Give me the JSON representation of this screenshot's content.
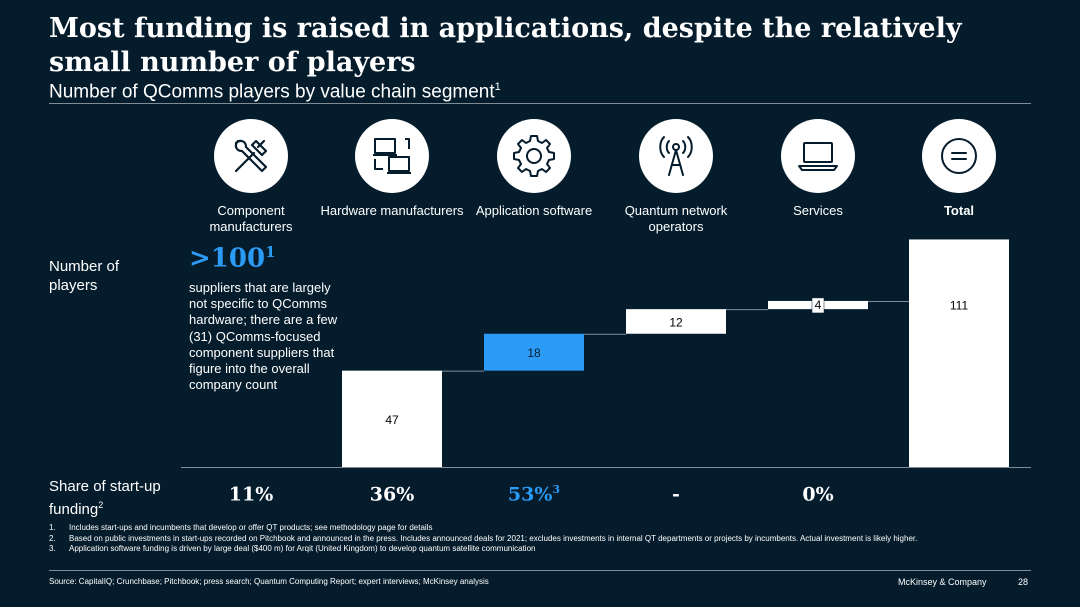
{
  "title": "Most funding is raised in applications, despite the relatively small number of players",
  "subtitle": "Number of QComms players by value chain segment",
  "subtitle_sup": "1",
  "row_labels": {
    "players": "Number of players",
    "funding": "Share of start-up funding",
    "funding_sup": "2"
  },
  "highlight": {
    "value": ">100",
    "sup": "1",
    "note": "suppliers that are largely not specific to QComms hardware; there are a few (31) QComms-focused component suppliers that figure into the overall company count"
  },
  "segments": [
    {
      "label": "Component manufacturers",
      "icon": "tools-icon",
      "share": "11%",
      "share_sup": "",
      "bold": false
    },
    {
      "label": "Hardware manufacturers",
      "icon": "hardware-devices-icon",
      "share": "36%",
      "share_sup": "",
      "bold": false
    },
    {
      "label": "Application software",
      "icon": "gear-icon",
      "share": "53%",
      "share_sup": "3",
      "bold": false
    },
    {
      "label": "Quantum network operators",
      "icon": "antenna-tower-icon",
      "share": "-",
      "share_sup": "",
      "bold": false
    },
    {
      "label": "Services",
      "icon": "laptop-icon",
      "share": "0%",
      "share_sup": "",
      "bold": false
    },
    {
      "label": "Total",
      "icon": "equals-icon",
      "share": "",
      "share_sup": "",
      "bold": true
    }
  ],
  "chart_data": {
    "type": "bar",
    "categories": [
      "Component manufacturers",
      "Hardware manufacturers",
      "Application software",
      "Quantum network operators",
      "Services",
      "Total"
    ],
    "values": [
      null,
      47,
      18,
      12,
      4,
      111
    ],
    "labels": [
      "",
      "47",
      "18",
      "12",
      "4",
      "111"
    ],
    "colors": {
      "default": "#ffffff",
      "highlight": "#2b9bf6",
      "connector": "#7f8c96"
    },
    "highlight_index": 2
  },
  "footnotes": [
    {
      "n": "1.",
      "text": "Includes start-ups and incumbents that develop or offer QT products; see methodology page for details"
    },
    {
      "n": "2.",
      "text": "Based on public investments in start-ups recorded on Pitchbook and announced in the press. Includes announced deals for 2021; excludes investments in internal QT departments or projects by incumbents. Actual investment is likely higher."
    },
    {
      "n": "3.",
      "text": "Application software funding is driven by large deal ($400 m) for Arqit (United Kingdom) to develop quantum satellite communication"
    }
  ],
  "source": "Source: CapitalIQ; Crunchbase; Pitchbook; press search; Quantum Computing Report; expert interviews; McKinsey analysis",
  "brand": "McKinsey & Company",
  "page_number": "28"
}
